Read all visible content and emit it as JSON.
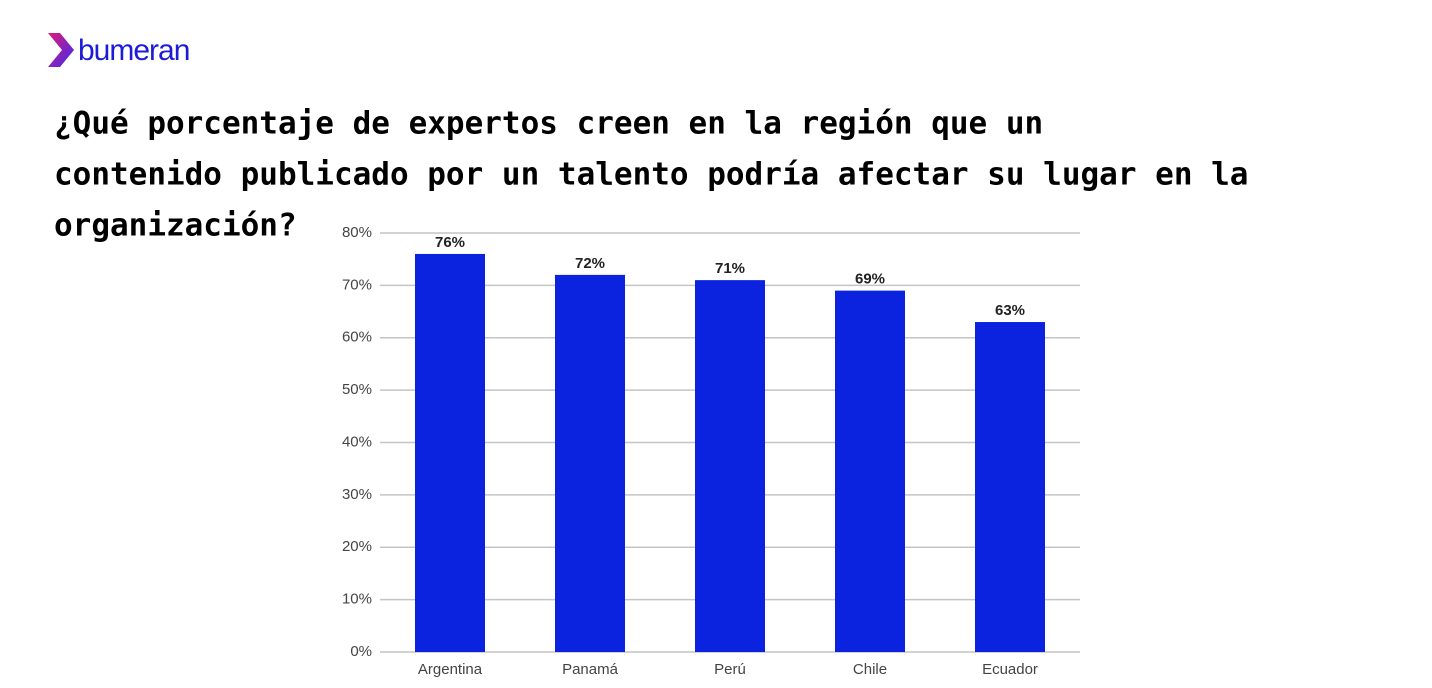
{
  "brand": "bumeran",
  "chart_data": {
    "type": "bar",
    "title": [
      "¿Qué porcentaje de expertos creen en la región que un",
      "contenido publicado por un talento podría afectar su lugar en la",
      "organización?"
    ],
    "categories": [
      "Argentina",
      "Panamá",
      "Perú",
      "Chile",
      "Ecuador"
    ],
    "values": [
      76,
      72,
      71,
      69,
      63
    ],
    "value_labels": [
      "76%",
      "72%",
      "71%",
      "69%",
      "63%"
    ],
    "color": "#0b22de",
    "ylim": [
      0,
      80
    ],
    "yticks": [
      {
        "value": 0,
        "label": "0%"
      },
      {
        "value": 10,
        "label": "10%"
      },
      {
        "value": 20,
        "label": "20%"
      },
      {
        "value": 30,
        "label": "30%"
      },
      {
        "value": 40,
        "label": "40%"
      },
      {
        "value": 50,
        "label": "50%"
      },
      {
        "value": 60,
        "label": "60%"
      },
      {
        "value": 70,
        "label": "70%"
      },
      {
        "value": 80,
        "label": "80%"
      }
    ],
    "grid": true
  }
}
